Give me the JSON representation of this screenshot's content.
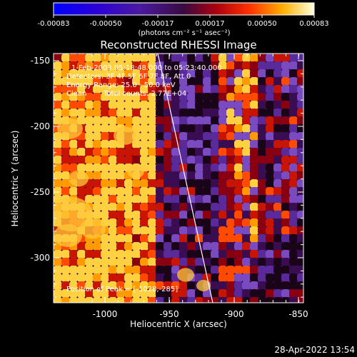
{
  "colorbar": {
    "tick_labels": [
      "-0.00083",
      "-0.00050",
      "-0.00017",
      "0.00017",
      "0.00050",
      "0.00083"
    ],
    "units": "(photons cm⁻² s⁻¹ asec⁻²)"
  },
  "title": "Reconstructed RHESSI Image",
  "info": {
    "line1": "1-Feb-2003 05:18:48.000 to 05:23:40.000",
    "line2": "Detectors: 3F 4F 5F 6F 7F 8F, Att 0",
    "line3": "Energy Range: 25.0 - 50.0 keV",
    "line4_left": "Clean",
    "line4_right": "Total counts: 2.77E+04"
  },
  "peak_text": "Position of Peak = [-1028,-285]",
  "axes": {
    "xlabel": "Heliocentric X (arcsec)",
    "ylabel": "Heliocentric Y (arcsec)",
    "x_ticks": [
      "-1000",
      "-950",
      "-900",
      "-850"
    ],
    "y_ticks": [
      "-150",
      "-200",
      "-250",
      "-300"
    ]
  },
  "timestamp": "28-Apr-2022 13:54"
}
